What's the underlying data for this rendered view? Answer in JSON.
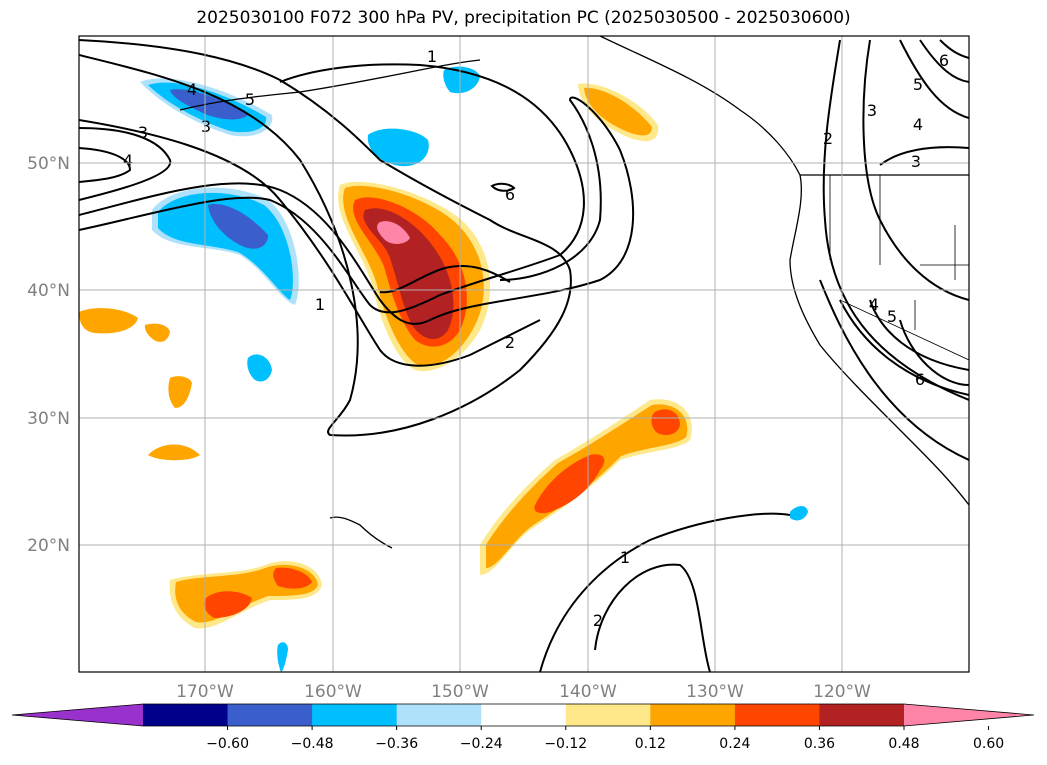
{
  "title": "2025030100 F072 300 hPa PV, precipitation PC (2025030500 - 2025030600)",
  "map": {
    "lon_ticks": [
      "170°W",
      "160°W",
      "150°W",
      "140°W",
      "130°W",
      "120°W"
    ],
    "lat_ticks": [
      "50°N",
      "40°N",
      "30°N",
      "20°N"
    ],
    "grid": true,
    "extent": {
      "lon": [
        -180,
        -110
      ],
      "lat": [
        10,
        60
      ]
    }
  },
  "contours": {
    "variable": "300 hPa PV",
    "labels": [
      "5",
      "4",
      "3",
      "3",
      "4",
      "1",
      "1",
      "6",
      "2",
      "1",
      "2",
      "2",
      "3",
      "5",
      "4",
      "3",
      "6",
      "4",
      "5",
      "6"
    ]
  },
  "colorbar": {
    "ticks": [
      "−0.60",
      "−0.48",
      "−0.36",
      "−0.24",
      "−0.12",
      "0.12",
      "0.24",
      "0.36",
      "0.48",
      "0.60"
    ],
    "colors": [
      "#9932CC",
      "#00008B",
      "#3A5FCD",
      "#00BFFF",
      "#ADE2FA",
      "#FFFFFF",
      "#FFE88A",
      "#FFA500",
      "#FF4500",
      "#B22222",
      "#FF85A8"
    ]
  }
}
